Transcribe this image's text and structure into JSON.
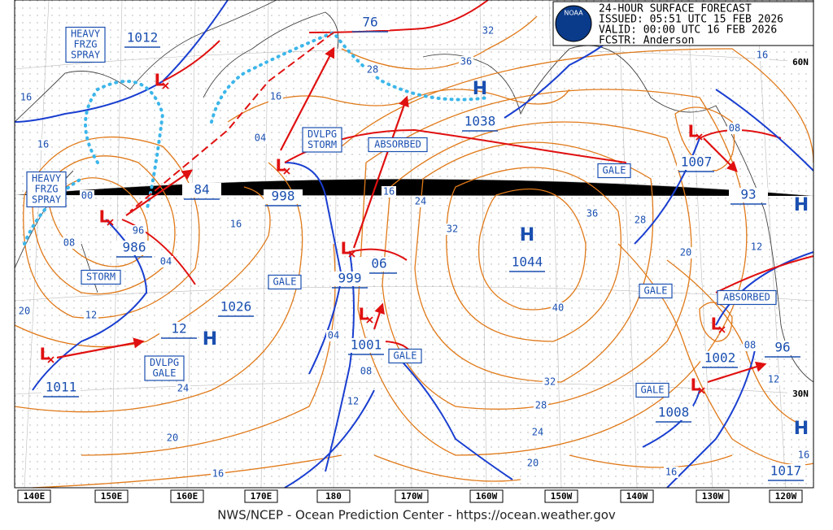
{
  "header": {
    "title": "24-HOUR SURFACE FORECAST",
    "issued": "ISSUED: 05:51 UTC 15 FEB 2026",
    "valid": "VALID:  00:00 UTC 16 FEB 2026",
    "forecaster": "FCSTR:  Anderson",
    "logo": "NOAA"
  },
  "footer": "NWS/NCEP - Ocean Prediction Center - https://ocean.weather.gov",
  "longitude_labels": [
    "140E",
    "150E",
    "160E",
    "170E",
    "180",
    "170W",
    "160W",
    "150W",
    "140W",
    "130W",
    "120W"
  ],
  "latitude_labels": [
    "60N",
    "30N"
  ],
  "highs": [
    "H",
    "H",
    "H",
    "H",
    "H"
  ],
  "lows": [
    "L",
    "L",
    "L",
    "L",
    "L",
    "L",
    "L",
    "L",
    "L"
  ],
  "pressure_labels": [
    "1012",
    "76",
    "1038",
    "84",
    "998",
    "986",
    "06",
    "999",
    "1044",
    "1026",
    "12",
    "1001",
    "1011",
    "1007",
    "93",
    "1002",
    "96",
    "1008",
    "1017"
  ],
  "isobar_labels": [
    "32",
    "16",
    "28",
    "36",
    "16",
    "16",
    "16",
    "04",
    "08",
    "16",
    "24",
    "00",
    "16",
    "36",
    "28",
    "32",
    "20",
    "12",
    "08",
    "96",
    "04",
    "12",
    "20",
    "40",
    "04",
    "08",
    "08",
    "12",
    "32",
    "24",
    "12",
    "28",
    "24",
    "20",
    "20",
    "16",
    "16",
    "16"
  ],
  "boxes": [
    {
      "lines": [
        "HEAVY",
        "FRZG",
        "SPRAY"
      ]
    },
    {
      "lines": [
        "HEAVY",
        "FRZG",
        "SPRAY"
      ]
    },
    {
      "lines": [
        "DVLPG",
        "STORM"
      ]
    },
    {
      "lines": [
        "ABSORBED"
      ]
    },
    {
      "lines": [
        "GALE"
      ]
    },
    {
      "lines": [
        "GALE"
      ]
    },
    {
      "lines": [
        "STORM"
      ]
    },
    {
      "lines": [
        "GALE"
      ]
    },
    {
      "lines": [
        "ABSORBED"
      ]
    },
    {
      "lines": [
        "DVLPG",
        "GALE"
      ]
    },
    {
      "lines": [
        "GALE"
      ]
    },
    {
      "lines": [
        "GALE"
      ]
    }
  ]
}
